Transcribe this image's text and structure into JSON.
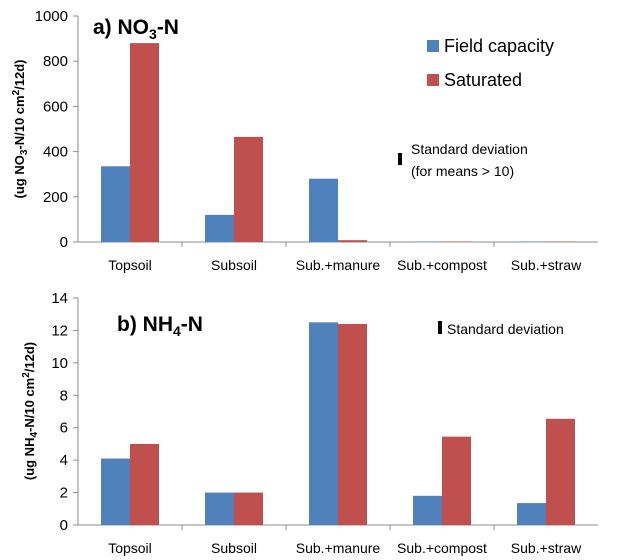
{
  "chart_data": [
    {
      "type": "bar",
      "panel": "a",
      "title": "a) NO₃-N",
      "title_prefix": "a) NO",
      "title_sub": "3",
      "title_suffix": "-N",
      "ylabel": "(ug NO₃-N/10 cm²/12d)",
      "ylabel_parts": {
        "a": "(ug NO",
        "b": "3",
        "c": "-N/10 cm",
        "d": "2",
        "e": "/12d)"
      },
      "ylim": [
        0,
        1000
      ],
      "yticks": [
        0,
        200,
        400,
        600,
        800,
        1000
      ],
      "categories": [
        "Topsoil",
        "Subsoil",
        "Sub.+manure",
        "Sub.+compost",
        "Sub.+straw"
      ],
      "series": [
        {
          "name": "Field capacity",
          "color": "#4f81bd",
          "values": [
            335,
            120,
            280,
            2,
            2
          ]
        },
        {
          "name": "Saturated",
          "color": "#c0504d",
          "values": [
            880,
            465,
            8,
            2,
            2
          ]
        }
      ],
      "legend_position": "top-right",
      "annotation": {
        "line1": "Standard deviation",
        "line2": "(for means > 10)"
      },
      "grid": false
    },
    {
      "type": "bar",
      "panel": "b",
      "title": "b) NH₄-N",
      "title_prefix": "b) NH",
      "title_sub": "4",
      "title_suffix": "-N",
      "ylabel": "(ug NH₄-N/10 cm²/12d)",
      "ylabel_parts": {
        "a": "(ug NH",
        "b": "4",
        "c": "-N/10 cm",
        "d": "2",
        "e": "/12d)"
      },
      "ylim": [
        0,
        14
      ],
      "yticks": [
        0,
        2,
        4,
        6,
        8,
        10,
        12,
        14
      ],
      "categories": [
        "Topsoil",
        "Subsoil",
        "Sub.+manure",
        "Sub.+compost",
        "Sub.+straw"
      ],
      "series": [
        {
          "name": "Field capacity",
          "color": "#4f81bd",
          "values": [
            4.1,
            2.0,
            12.5,
            1.8,
            1.35
          ]
        },
        {
          "name": "Saturated",
          "color": "#c0504d",
          "values": [
            5.0,
            2.0,
            12.4,
            5.45,
            6.55
          ]
        }
      ],
      "annotation": {
        "line1": "Standard deviation"
      },
      "grid": false
    }
  ]
}
